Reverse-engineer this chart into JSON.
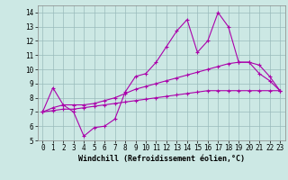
{
  "xlabel": "Windchill (Refroidissement éolien,°C)",
  "bg_color": "#cce8e4",
  "line_color": "#aa00aa",
  "grid_color": "#99bbbb",
  "xlim": [
    -0.5,
    23.5
  ],
  "ylim": [
    5,
    14.5
  ],
  "yticks": [
    5,
    6,
    7,
    8,
    9,
    10,
    11,
    12,
    13,
    14
  ],
  "xticks": [
    0,
    1,
    2,
    3,
    4,
    5,
    6,
    7,
    8,
    9,
    10,
    11,
    12,
    13,
    14,
    15,
    16,
    17,
    18,
    19,
    20,
    21,
    22,
    23
  ],
  "line1_x": [
    0,
    1,
    2,
    3,
    4,
    5,
    6,
    7,
    8,
    9,
    10,
    11,
    12,
    13,
    14,
    15,
    16,
    17,
    18,
    19,
    20,
    21,
    22,
    23
  ],
  "line1_y": [
    7.0,
    8.7,
    7.5,
    7.0,
    5.3,
    5.9,
    6.0,
    6.5,
    8.4,
    9.5,
    9.7,
    10.5,
    11.6,
    12.7,
    13.5,
    11.2,
    12.0,
    14.0,
    13.0,
    10.5,
    10.5,
    9.7,
    9.2,
    8.5
  ],
  "line2_x": [
    0,
    1,
    2,
    3,
    4,
    5,
    6,
    7,
    8,
    9,
    10,
    11,
    12,
    13,
    14,
    15,
    16,
    17,
    18,
    19,
    20,
    21,
    22,
    23
  ],
  "line2_y": [
    7.0,
    7.3,
    7.5,
    7.5,
    7.5,
    7.6,
    7.8,
    8.0,
    8.3,
    8.6,
    8.8,
    9.0,
    9.2,
    9.4,
    9.6,
    9.8,
    10.0,
    10.2,
    10.4,
    10.5,
    10.5,
    10.3,
    9.5,
    8.5
  ],
  "line3_x": [
    0,
    1,
    2,
    3,
    4,
    5,
    6,
    7,
    8,
    9,
    10,
    11,
    12,
    13,
    14,
    15,
    16,
    17,
    18,
    19,
    20,
    21,
    22,
    23
  ],
  "line3_y": [
    7.0,
    7.1,
    7.2,
    7.2,
    7.3,
    7.4,
    7.5,
    7.6,
    7.7,
    7.8,
    7.9,
    8.0,
    8.1,
    8.2,
    8.3,
    8.4,
    8.5,
    8.5,
    8.5,
    8.5,
    8.5,
    8.5,
    8.5,
    8.5
  ],
  "marker": "+",
  "markersize": 3,
  "linewidth": 0.8,
  "tick_fontsize": 5.5,
  "xlabel_fontsize": 6.0
}
